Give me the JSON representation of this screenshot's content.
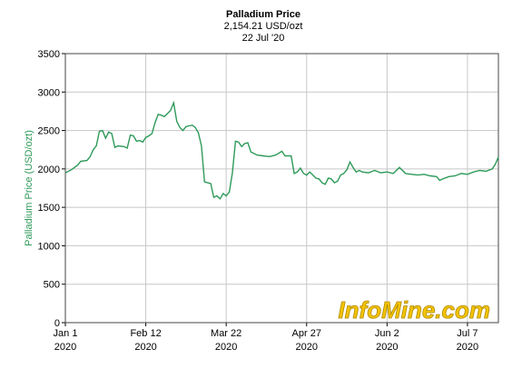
{
  "chart_data": {
    "type": "line",
    "title": "Palladium Price",
    "subtitle": "2,154.21 USD/ozt",
    "date": "22 Jul '20",
    "ylabel": "Palladium Price (USD/ozt)",
    "watermark": "InfoMine.com",
    "xlim": [
      0,
      140
    ],
    "ylim": [
      0,
      3500
    ],
    "xticks": [
      {
        "value": 0,
        "label": "Jan 1\n2020"
      },
      {
        "value": 26,
        "label": "Feb 12\n2020"
      },
      {
        "value": 52,
        "label": "Mar 22\n2020"
      },
      {
        "value": 78,
        "label": "Apr 27\n2020"
      },
      {
        "value": 104,
        "label": "Jun 2\n2020"
      },
      {
        "value": 130,
        "label": "Jul 7\n2020"
      }
    ],
    "yticks": [
      0,
      500,
      1000,
      1500,
      2000,
      2500,
      3000,
      3500
    ],
    "grid": true,
    "series": [
      {
        "name": "Palladium Price",
        "color": "#2e9a5a",
        "x": [
          0,
          2,
          4,
          5,
          7,
          8,
          9,
          10,
          11,
          12,
          13,
          14,
          15,
          16,
          17,
          19,
          20,
          21,
          22,
          23,
          24,
          25,
          26,
          27,
          28,
          29,
          30,
          31,
          32,
          33,
          34,
          35,
          36,
          37,
          38,
          39,
          40,
          41,
          42,
          43,
          44,
          45,
          46,
          47,
          48,
          49,
          50,
          51,
          52,
          53,
          54,
          55,
          56,
          57,
          58,
          59,
          60,
          61,
          62,
          64,
          66,
          68,
          70,
          71,
          73,
          74,
          75,
          76,
          77,
          78,
          79,
          80,
          81,
          82,
          83,
          84,
          85,
          86,
          87,
          88,
          89,
          90,
          91,
          92,
          93,
          94,
          95,
          96,
          98,
          100,
          102,
          104,
          106,
          108,
          110,
          112,
          114,
          116,
          118,
          120,
          121,
          122,
          124,
          126,
          128,
          130,
          132,
          134,
          136,
          138,
          139,
          140
        ],
        "values": [
          1950,
          1990,
          2050,
          2100,
          2110,
          2160,
          2250,
          2300,
          2490,
          2500,
          2400,
          2480,
          2460,
          2280,
          2300,
          2290,
          2270,
          2440,
          2430,
          2360,
          2370,
          2350,
          2410,
          2430,
          2460,
          2600,
          2710,
          2700,
          2680,
          2720,
          2760,
          2860,
          2620,
          2540,
          2500,
          2550,
          2560,
          2570,
          2540,
          2470,
          2300,
          1830,
          1820,
          1810,
          1630,
          1650,
          1610,
          1680,
          1650,
          1700,
          1950,
          2360,
          2350,
          2290,
          2330,
          2340,
          2220,
          2200,
          2180,
          2170,
          2160,
          2180,
          2230,
          2170,
          2170,
          1940,
          1960,
          2010,
          1940,
          1920,
          1960,
          1920,
          1880,
          1870,
          1820,
          1800,
          1880,
          1870,
          1820,
          1840,
          1920,
          1940,
          1990,
          2090,
          2020,
          1960,
          1980,
          1960,
          1950,
          1980,
          1950,
          1960,
          1940,
          2020,
          1940,
          1930,
          1920,
          1930,
          1910,
          1900,
          1850,
          1870,
          1900,
          1910,
          1940,
          1930,
          1960,
          1980,
          1970,
          2000,
          2060,
          2154.21
        ]
      }
    ]
  }
}
